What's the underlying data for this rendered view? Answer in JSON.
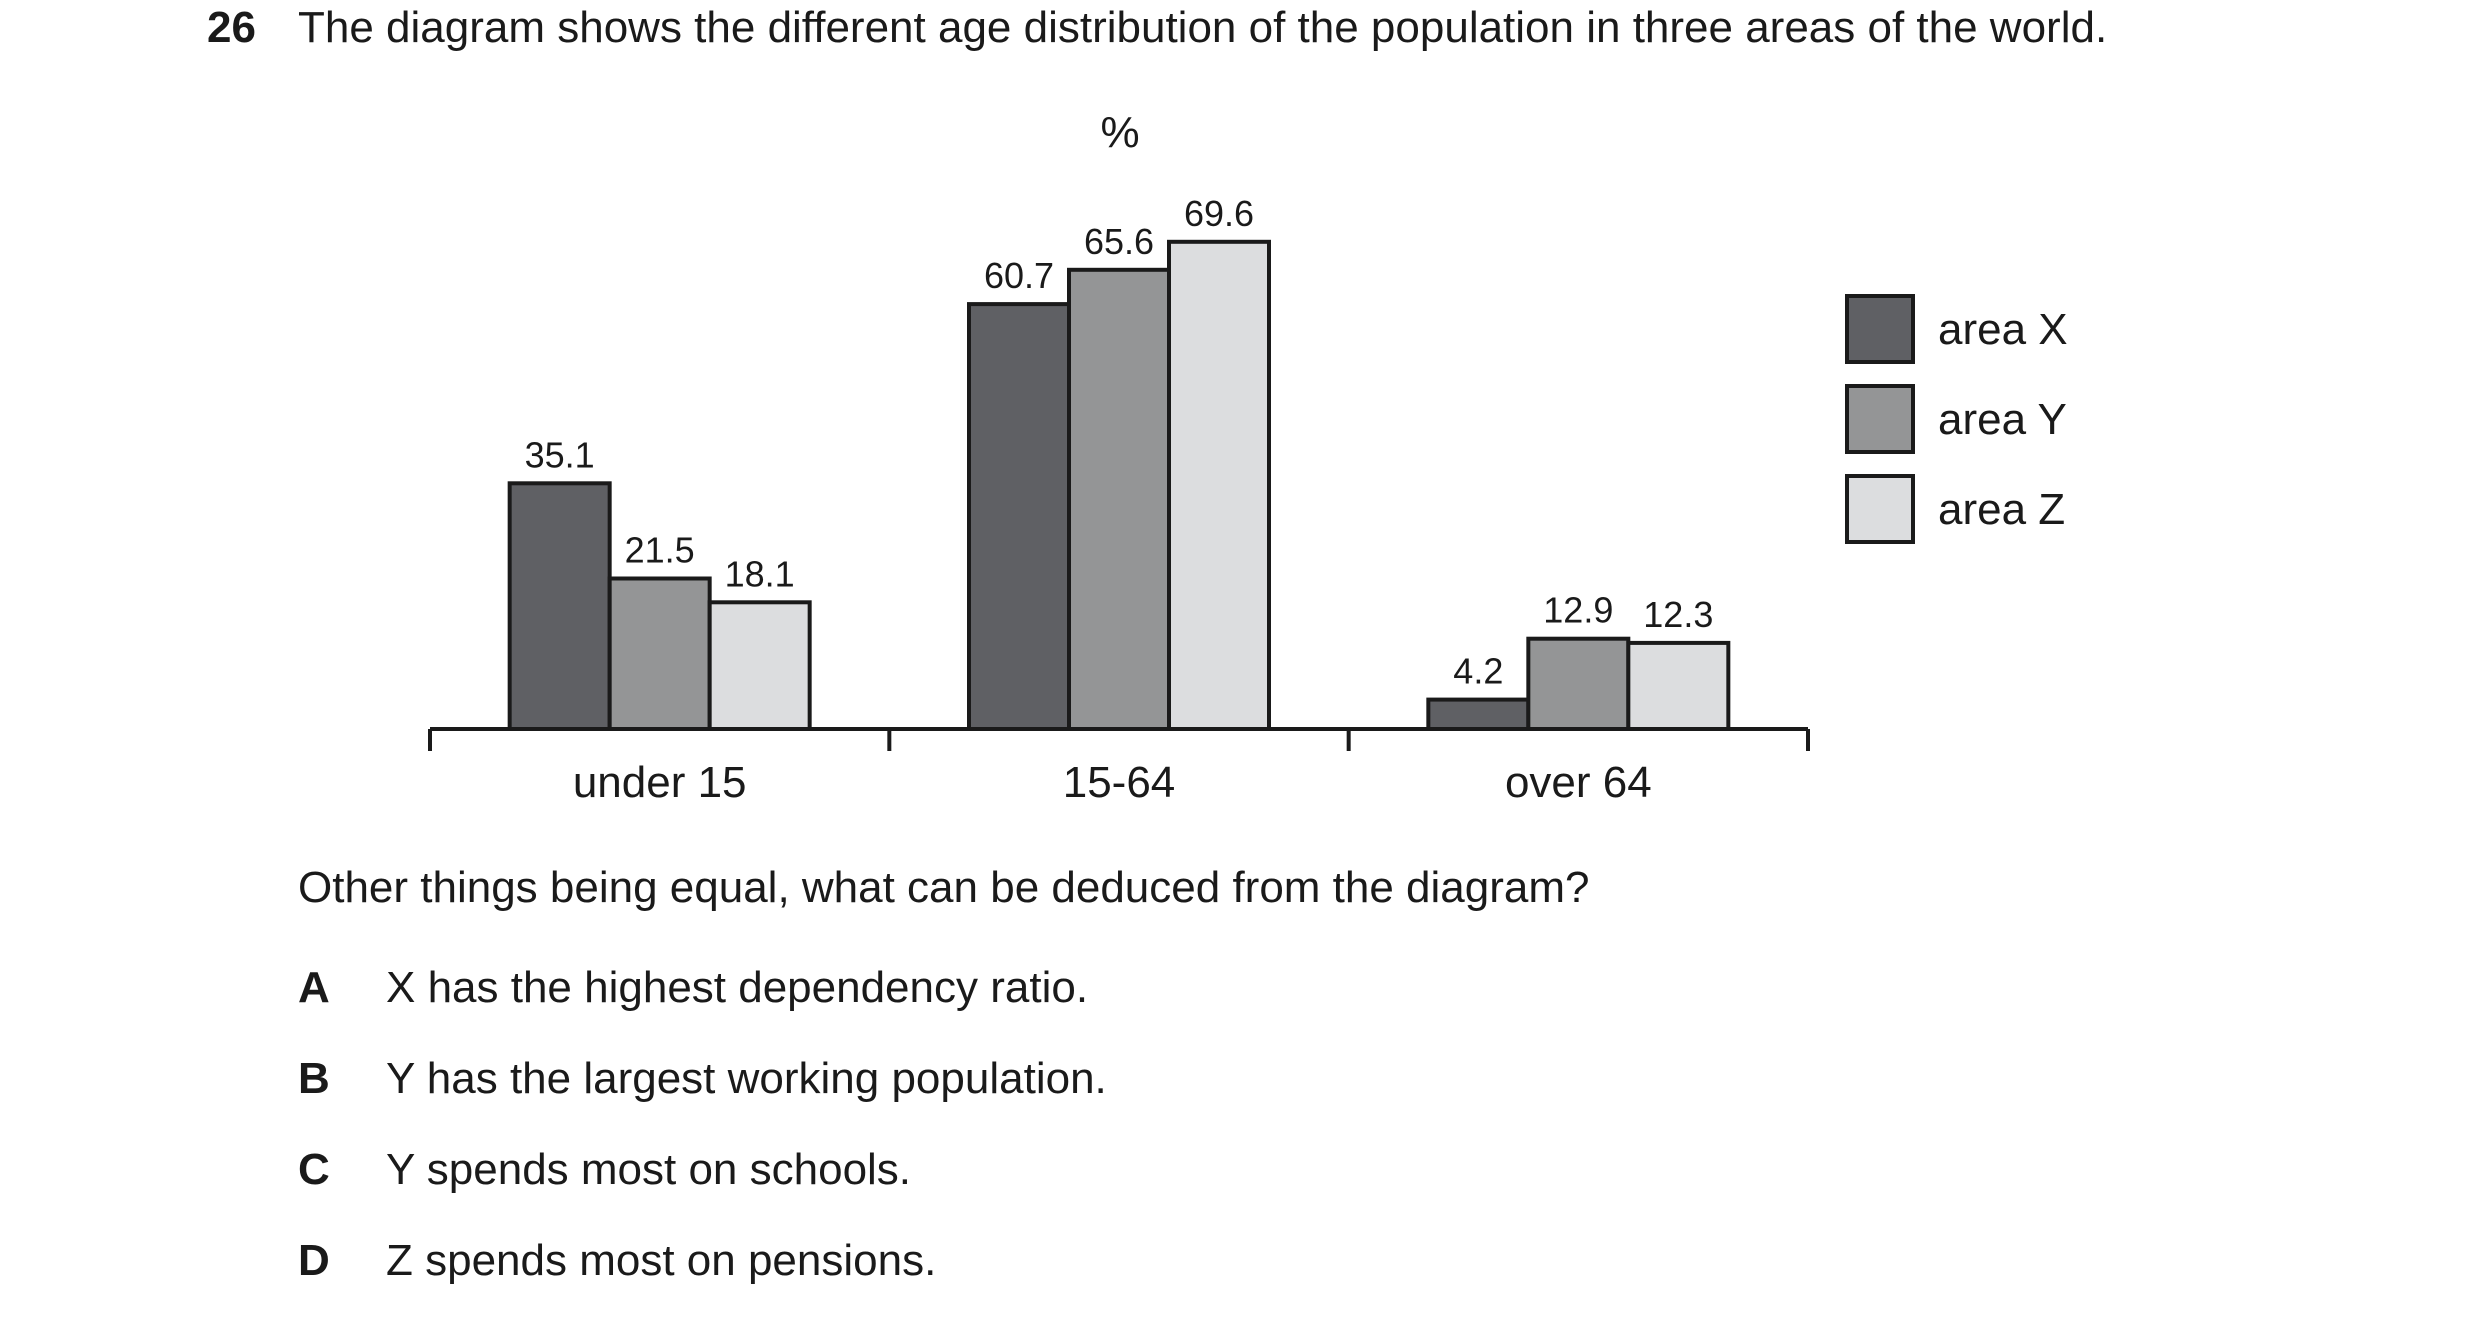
{
  "question": {
    "number": "26",
    "text": "The diagram shows the different age distribution of the population in three areas of the world.",
    "prompt": "Other things being equal, what can be deduced from the diagram?"
  },
  "options": [
    {
      "letter": "A",
      "text": "X has the highest dependency ratio."
    },
    {
      "letter": "B",
      "text": "Y has the largest working population."
    },
    {
      "letter": "C",
      "text": "Y spends most on schools."
    },
    {
      "letter": "D",
      "text": "Z spends most on pensions."
    }
  ],
  "chart_data": {
    "type": "bar",
    "unit_label": "%",
    "categories": [
      "under 15",
      "15-64",
      "over 64"
    ],
    "series": [
      {
        "name": "area X",
        "color": "#5f6064",
        "values": [
          35.1,
          60.7,
          4.2
        ]
      },
      {
        "name": "area Y",
        "color": "#949596",
        "values": [
          21.5,
          65.6,
          12.9
        ]
      },
      {
        "name": "area Z",
        "color": "#dcdddf",
        "values": [
          18.1,
          69.6,
          12.3
        ]
      }
    ],
    "data_labels": true,
    "legend_position": "right",
    "grid": false,
    "y_axis_shown": false
  }
}
